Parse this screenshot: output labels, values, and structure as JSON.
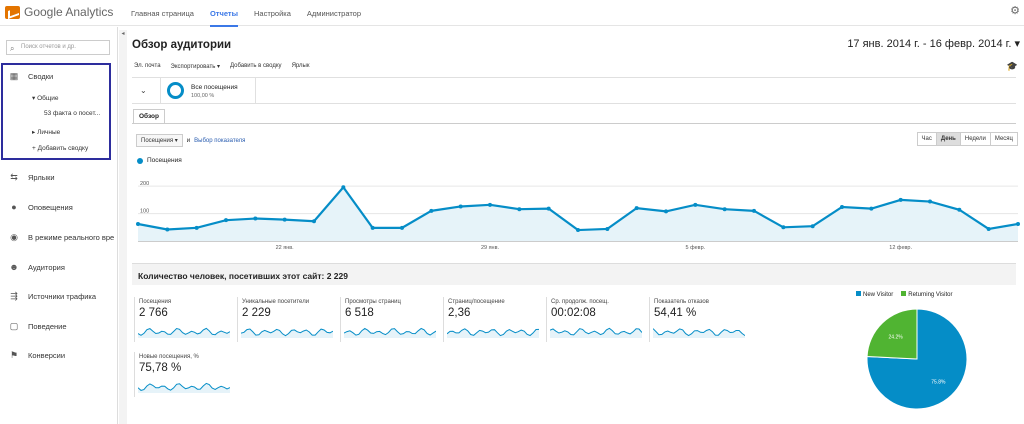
{
  "app": {
    "name": "Google Analytics"
  },
  "topnav": [
    {
      "label": "Главная страница",
      "active": false
    },
    {
      "label": "Отчеты",
      "active": true
    },
    {
      "label": "Настройка",
      "active": false
    },
    {
      "label": "Администратор",
      "active": false
    }
  ],
  "sidebar": {
    "search_placeholder": "Поиск отчетов и др.",
    "items": [
      {
        "label": "Сводки",
        "icon": "grid-icon"
      },
      {
        "label": "Ярлыки",
        "icon": "arrows-icon"
      },
      {
        "label": "Оповещения",
        "icon": "bulb-icon"
      },
      {
        "label": "В режиме реального времени",
        "icon": "realtime-icon"
      },
      {
        "label": "Аудитория",
        "icon": "people-icon"
      },
      {
        "label": "Источники трафика",
        "icon": "traffic-icon"
      },
      {
        "label": "Поведение",
        "icon": "page-icon"
      },
      {
        "label": "Конверсии",
        "icon": "flag-icon"
      }
    ],
    "dash_general": "▾ Общие",
    "dash_fact": "53 факта о посет...",
    "dash_private": "▸ Личные",
    "dash_add": "+ Добавить сводку"
  },
  "page": {
    "title": "Обзор аудитории",
    "date_range": "17 янв. 2014 г. - 16 февр. 2014 г.",
    "toolbar": [
      "Эл. почта",
      "Экспортировать ▾",
      "Добавить в сводку",
      "Ярлык"
    ]
  },
  "segment": {
    "name": "Все посещения",
    "pct": "100,00 %"
  },
  "tab": "Обзор",
  "metric_selector": {
    "value": "Посещения",
    "and": "и",
    "link": "Выбор показателя"
  },
  "period_buttons": [
    {
      "label": "Час",
      "active": false
    },
    {
      "label": "День",
      "active": true
    },
    {
      "label": "Недели",
      "active": false
    },
    {
      "label": "Месяц",
      "active": false
    }
  ],
  "chart_data": {
    "type": "area",
    "series": [
      {
        "name": "Посещения",
        "values": [
          62,
          42,
          48,
          76,
          82,
          78,
          72,
          196,
          48,
          48,
          110,
          126,
          132,
          116,
          118,
          40,
          44,
          120,
          108,
          132,
          116,
          110,
          50,
          54,
          124,
          118,
          150,
          144,
          114,
          44,
          62
        ]
      }
    ],
    "x_tick_labels": [
      "22 янв.",
      "29 янв.",
      "5 февр.",
      "12 февр."
    ],
    "y_tick_labels": [
      "100",
      "200"
    ],
    "ylim": [
      0,
      270
    ],
    "color": "#058dc7"
  },
  "summary_title": "Количество человек, посетивших этот сайт: 2 229",
  "metrics": [
    {
      "label": "Посещения",
      "value": "2 766"
    },
    {
      "label": "Уникальные посетители",
      "value": "2 229"
    },
    {
      "label": "Просмотры страниц",
      "value": "6 518"
    },
    {
      "label": "Страниц/посещение",
      "value": "2,36"
    },
    {
      "label": "Ср. продолж. посещ.",
      "value": "00:02:08"
    },
    {
      "label": "Показатель отказов",
      "value": "54,41 %"
    },
    {
      "label": "Новые посещения, %",
      "value": "75,78 %"
    }
  ],
  "pie": {
    "type": "pie",
    "labels": [
      "New Visitor",
      "Returning Visitor"
    ],
    "values": [
      75.8,
      24.2
    ],
    "slice_labels": [
      "75.8%",
      "24.2%"
    ],
    "colors": [
      "#058dc7",
      "#50b432"
    ]
  }
}
